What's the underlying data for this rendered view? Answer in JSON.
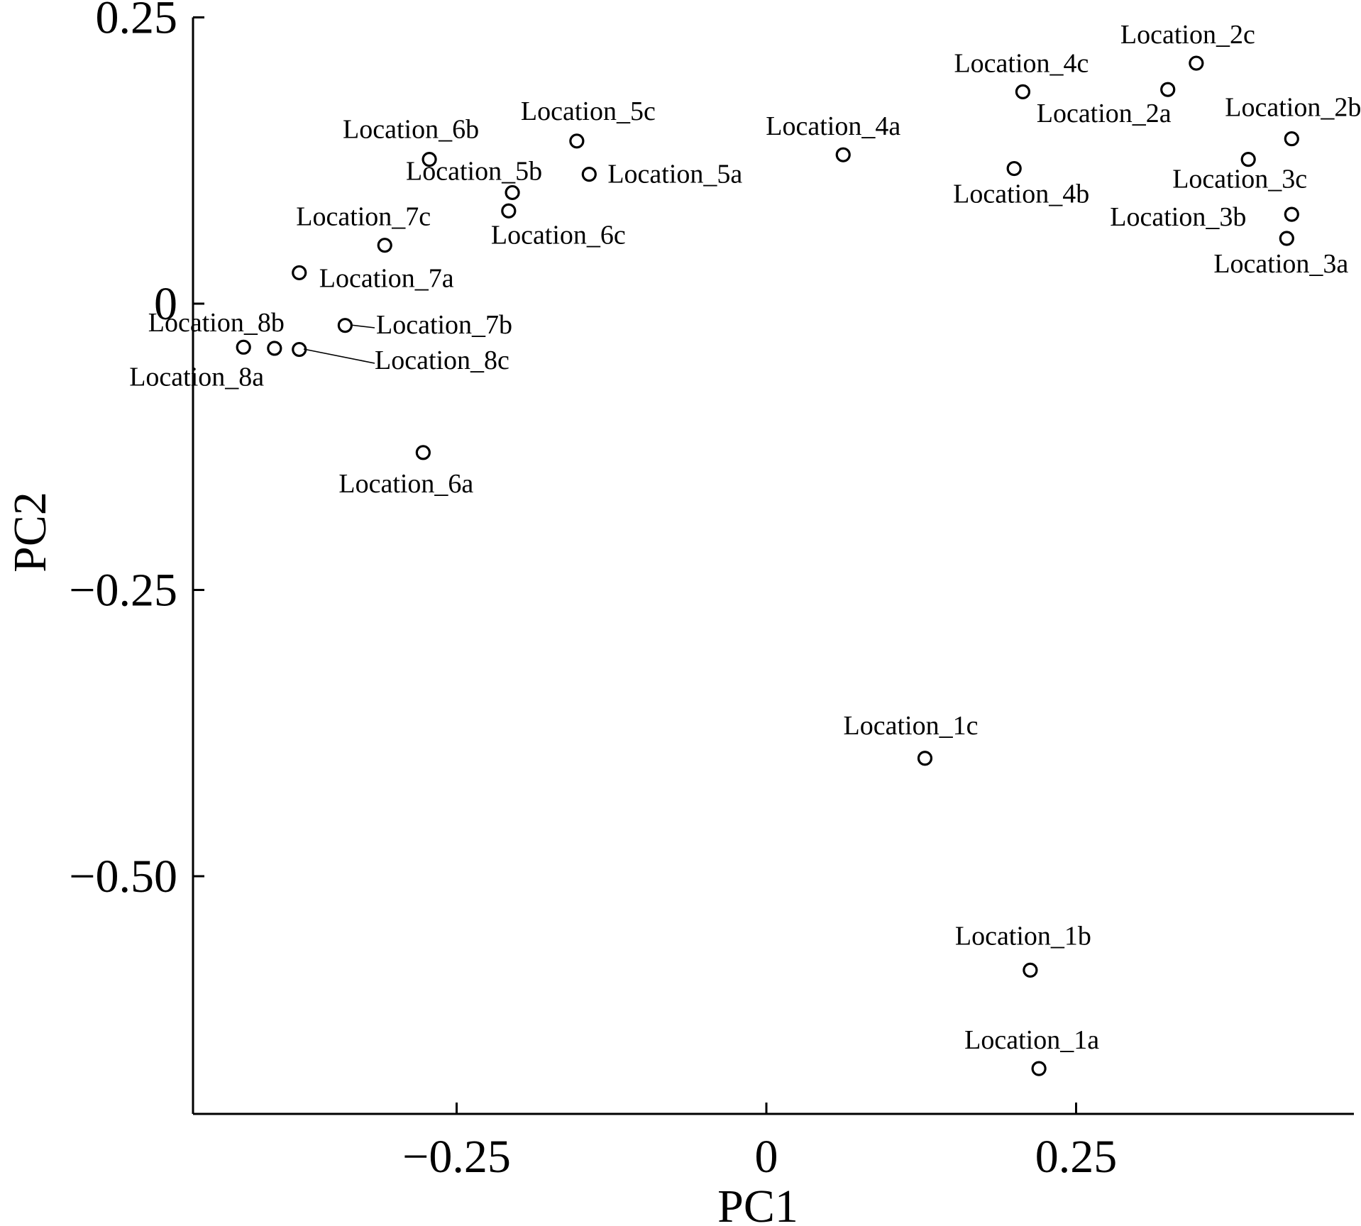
{
  "chart_data": {
    "type": "scatter",
    "title": "",
    "xlabel": "PC1",
    "ylabel": "PC2",
    "xlim": [
      -0.46,
      0.47
    ],
    "ylim": [
      -0.71,
      0.25
    ],
    "xticks": [
      {
        "v": -0.25,
        "label": "−0.25"
      },
      {
        "v": 0,
        "label": "0"
      },
      {
        "v": 0.25,
        "label": "0.25"
      }
    ],
    "yticks": [
      {
        "v": 0.25,
        "label": "0.25"
      },
      {
        "v": 0,
        "label": "0"
      },
      {
        "v": -0.25,
        "label": "−0.25"
      },
      {
        "v": -0.5,
        "label": "−0.50"
      }
    ],
    "marker": "open-circle",
    "grid": false,
    "points": [
      {
        "label": "Location_1a",
        "x": 0.22,
        "y": -0.668
      },
      {
        "label": "Location_1b",
        "x": 0.213,
        "y": -0.582
      },
      {
        "label": "Location_1c",
        "x": 0.128,
        "y": -0.397
      },
      {
        "label": "Location_2a",
        "x": 0.324,
        "y": 0.187
      },
      {
        "label": "Location_2b",
        "x": 0.424,
        "y": 0.144
      },
      {
        "label": "Location_2c",
        "x": 0.347,
        "y": 0.21
      },
      {
        "label": "Location_3a",
        "x": 0.42,
        "y": 0.057
      },
      {
        "label": "Location_3b",
        "x": 0.424,
        "y": 0.078
      },
      {
        "label": "Location_3c",
        "x": 0.389,
        "y": 0.126
      },
      {
        "label": "Location_4a",
        "x": 0.062,
        "y": 0.13
      },
      {
        "label": "Location_4b",
        "x": 0.2,
        "y": 0.118
      },
      {
        "label": "Location_4c",
        "x": 0.207,
        "y": 0.185
      },
      {
        "label": "Location_5a",
        "x": -0.143,
        "y": 0.113
      },
      {
        "label": "Location_5b",
        "x": -0.205,
        "y": 0.097
      },
      {
        "label": "Location_5c",
        "x": -0.153,
        "y": 0.142
      },
      {
        "label": "Location_6a",
        "x": -0.277,
        "y": -0.13
      },
      {
        "label": "Location_6b",
        "x": -0.272,
        "y": 0.126
      },
      {
        "label": "Location_6c",
        "x": -0.208,
        "y": 0.081
      },
      {
        "label": "Location_7a",
        "x": -0.377,
        "y": 0.027
      },
      {
        "label": "Location_7b",
        "x": -0.34,
        "y": -0.019
      },
      {
        "label": "Location_7c",
        "x": -0.308,
        "y": 0.051
      },
      {
        "label": "Location_8a",
        "x": -0.422,
        "y": -0.038
      },
      {
        "label": "Location_8b",
        "x": -0.397,
        "y": -0.039
      },
      {
        "label": "Location_8c",
        "x": -0.377,
        "y": -0.04
      }
    ]
  }
}
